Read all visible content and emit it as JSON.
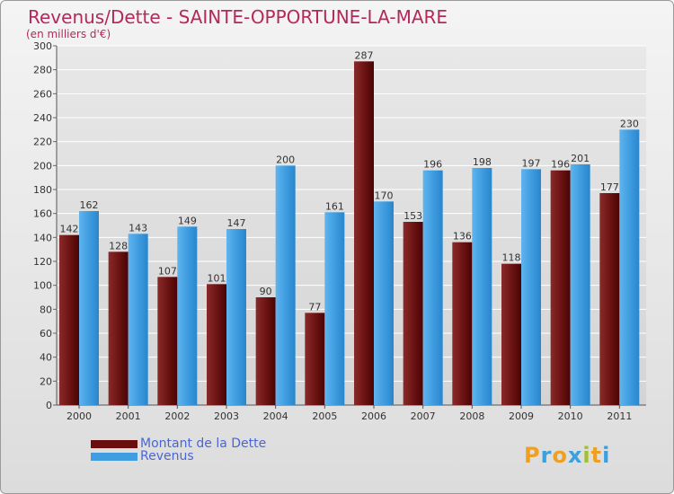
{
  "header": {
    "title": "Revenus/Dette - SAINTE-OPPORTUNE-LA-MARE",
    "subtitle": "(en milliers d'€)"
  },
  "chart_data": {
    "type": "bar",
    "categories": [
      "2000",
      "2001",
      "2002",
      "2003",
      "2004",
      "2005",
      "2006",
      "2007",
      "2008",
      "2009",
      "2010",
      "2011"
    ],
    "series": [
      {
        "name": "Montant de la Dette",
        "values": [
          142,
          128,
          107,
          101,
          90,
          77,
          287,
          153,
          136,
          118,
          196,
          177
        ],
        "color": "#7a1e1e"
      },
      {
        "name": "Revenus",
        "values": [
          162,
          143,
          149,
          147,
          200,
          161,
          170,
          196,
          198,
          197,
          201,
          230
        ],
        "color": "#3f9de0"
      }
    ],
    "ylim": [
      0,
      300
    ],
    "yticks": [
      0,
      20,
      40,
      60,
      80,
      100,
      120,
      140,
      160,
      180,
      200,
      220,
      240,
      260,
      280,
      300
    ],
    "grid": true,
    "legend_position": "bottom-left"
  },
  "legend": {
    "items": [
      {
        "label": "Montant de la Dette",
        "color": "#6b0e0e"
      },
      {
        "label": "Revenus",
        "color": "#3f9de0"
      }
    ]
  },
  "logo": {
    "text": "Proxiti",
    "letters": [
      {
        "ch": "P",
        "color": "#f0a020"
      },
      {
        "ch": "r",
        "color": "#3aa0e0"
      },
      {
        "ch": "o",
        "color": "#f0a020"
      },
      {
        "ch": "x",
        "color": "#3aa0e0"
      },
      {
        "ch": "i",
        "color": "#a0c030"
      },
      {
        "ch": "t",
        "color": "#f0a020"
      },
      {
        "ch": "i",
        "color": "#3aa0e0"
      }
    ]
  }
}
